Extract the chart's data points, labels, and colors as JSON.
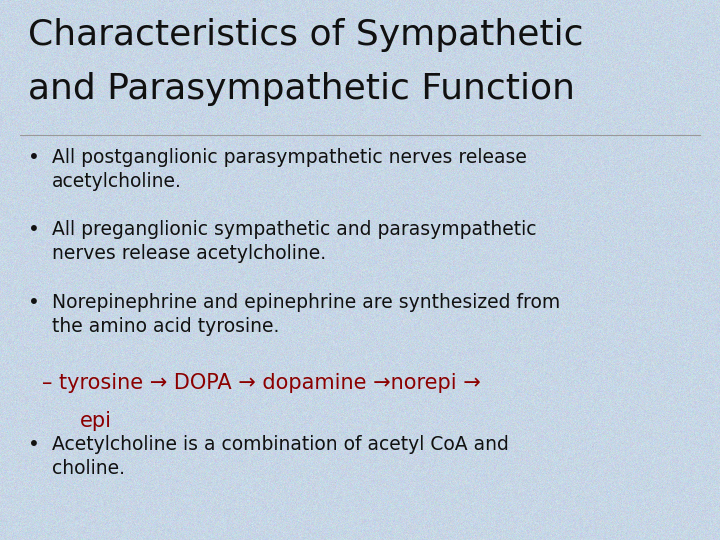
{
  "title_line1": "Characteristics of Sympathetic",
  "title_line2": "and Parasympathetic Function",
  "title_fontsize": 26,
  "title_color": "#111111",
  "background_color": "#bdd0e0",
  "bullet_color": "#111111",
  "bullet_fontsize": 13.5,
  "arrow_color": "#8b0000",
  "pathway_fontsize": 15,
  "bullets": [
    "All postganglionic parasympathetic nerves release\nacetylcholine.",
    "All preganglionic sympathetic and parasympathetic\nnerves release acetylcholine.",
    "Norepinephrine and epinephrine are synthesized from\nthe amino acid tyrosine."
  ],
  "bullet4": "Acetylcholine is a combination of acetyl CoA and\ncholine.",
  "pathway_text": "– tyrosine → DOPA → dopamine →norepi →",
  "pathway_epi": "epi",
  "bg_noise_std": 0.025,
  "bg_base": [
    0.78,
    0.84,
    0.9
  ]
}
